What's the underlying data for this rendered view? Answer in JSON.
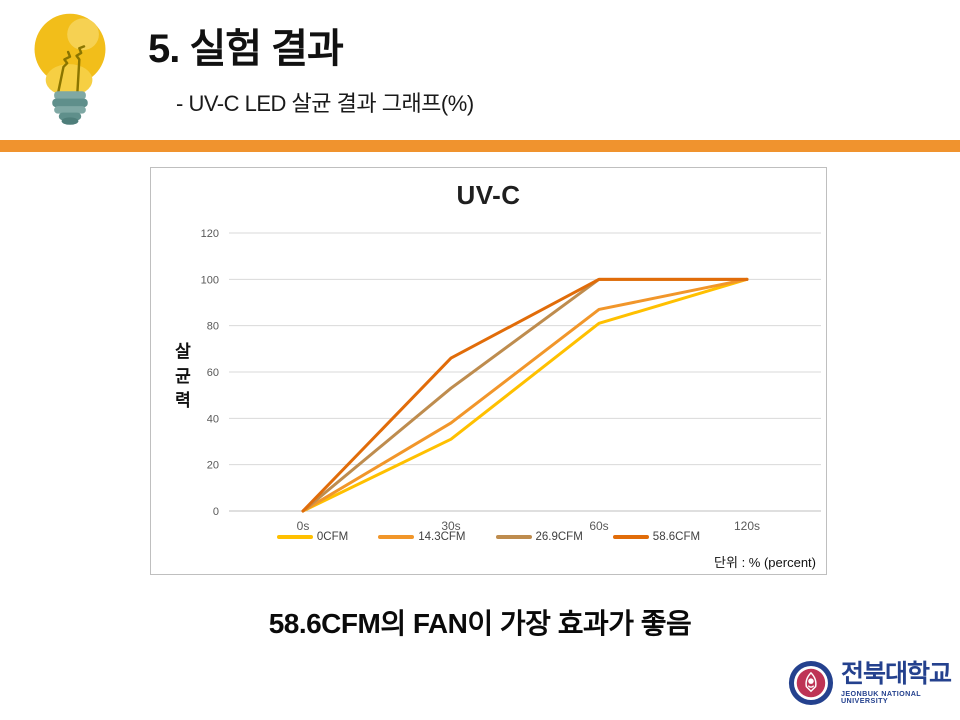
{
  "slide": {
    "title": "5. 실험 결과",
    "subtitle": "- UV-C LED 살균 결과 그래프(%)",
    "conclusion": "58.6CFM의 FAN이 가장 효과가 좋음",
    "accent_color": "#F0932E"
  },
  "icons": {
    "lightbulb": "lightbulb-icon",
    "university_emblem": "university-emblem-icon"
  },
  "chart_data": {
    "type": "line",
    "title": "UV-C",
    "categories": [
      "0s",
      "30s",
      "60s",
      "120s"
    ],
    "series": [
      {
        "name": "0CFM",
        "color": "#FFC000",
        "values": [
          0,
          31,
          81,
          100
        ]
      },
      {
        "name": "14.3CFM",
        "color": "#F1962A",
        "values": [
          0,
          38,
          87,
          100
        ]
      },
      {
        "name": "26.9CFM",
        "color": "#BE8C4E",
        "values": [
          0,
          53,
          100,
          100
        ]
      },
      {
        "name": "58.6CFM",
        "color": "#E16C09",
        "values": [
          0,
          66,
          100,
          100
        ]
      }
    ],
    "xlabel": "",
    "ylabel": "살균력",
    "yticks": [
      0,
      20,
      40,
      60,
      80,
      100,
      120
    ],
    "ylim": [
      0,
      120
    ],
    "grid": true,
    "legend_position": "bottom",
    "unit_note": "단위 : % (percent)",
    "axis_text_color": "#595959",
    "gridline_color": "#D9D9D9",
    "baseline_color": "#BFBFBF"
  },
  "logo": {
    "korean": "전북대학교",
    "english": "JEONBUK NATIONAL UNIVERSITY",
    "navy": "#24418E",
    "crimson": "#BE3455"
  }
}
